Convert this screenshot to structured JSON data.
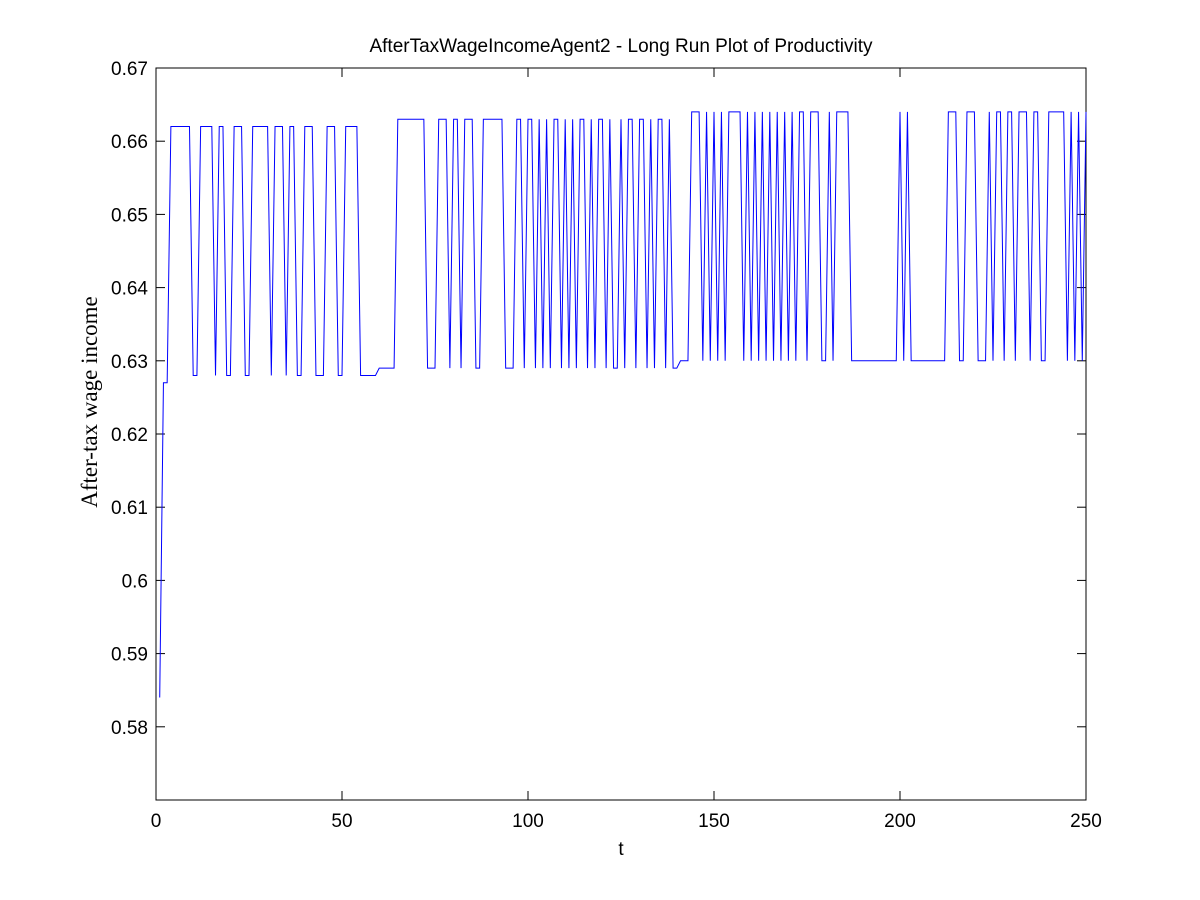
{
  "chart_data": {
    "type": "line",
    "title": "AfterTaxWageIncomeAgent2 - Long Run Plot of Productivity",
    "x_label": "t",
    "y_label": "After-tax wage income",
    "xlim": [
      0,
      250
    ],
    "xticks": [
      0,
      50,
      100,
      150,
      200,
      250
    ],
    "ylim": [
      0.57,
      0.67
    ],
    "yticks": [
      0.58,
      0.59,
      0.6,
      0.61,
      0.62,
      0.63,
      0.64,
      0.65,
      0.66,
      0.67
    ],
    "color": "#0000ff",
    "x": [
      1,
      2,
      3,
      4,
      5,
      6,
      7,
      8,
      9,
      10,
      11,
      12,
      13,
      14,
      15,
      16,
      17,
      18,
      19,
      20,
      21,
      22,
      23,
      24,
      25,
      26,
      27,
      28,
      29,
      30,
      31,
      32,
      33,
      34,
      35,
      36,
      37,
      38,
      39,
      40,
      41,
      42,
      43,
      44,
      45,
      46,
      47,
      48,
      49,
      50,
      51,
      52,
      53,
      54,
      55,
      56,
      57,
      58,
      59,
      60,
      61,
      62,
      63,
      64,
      65,
      66,
      67,
      68,
      69,
      70,
      71,
      72,
      73,
      74,
      75,
      76,
      77,
      78,
      79,
      80,
      81,
      82,
      83,
      84,
      85,
      86,
      87,
      88,
      89,
      90,
      91,
      92,
      93,
      94,
      95,
      96,
      97,
      98,
      99,
      100,
      101,
      102,
      103,
      104,
      105,
      106,
      107,
      108,
      109,
      110,
      111,
      112,
      113,
      114,
      115,
      116,
      117,
      118,
      119,
      120,
      121,
      122,
      123,
      124,
      125,
      126,
      127,
      128,
      129,
      130,
      131,
      132,
      133,
      134,
      135,
      136,
      137,
      138,
      139,
      140,
      141,
      142,
      143,
      144,
      145,
      146,
      147,
      148,
      149,
      150,
      151,
      152,
      153,
      154,
      155,
      156,
      157,
      158,
      159,
      160,
      161,
      162,
      163,
      164,
      165,
      166,
      167,
      168,
      169,
      170,
      171,
      172,
      173,
      174,
      175,
      176,
      177,
      178,
      179,
      180,
      181,
      182,
      183,
      184,
      185,
      186,
      187,
      188,
      189,
      190,
      191,
      192,
      193,
      194,
      195,
      196,
      197,
      198,
      199,
      200,
      201,
      202,
      203,
      204,
      205,
      206,
      207,
      208,
      209,
      210,
      211,
      212,
      213,
      214,
      215,
      216,
      217,
      218,
      219,
      220,
      221,
      222,
      223,
      224,
      225,
      226,
      227,
      228,
      229,
      230,
      231,
      232,
      233,
      234,
      235,
      236,
      237,
      238,
      239,
      240,
      241,
      242,
      243,
      244,
      245,
      246,
      247,
      248,
      249,
      250
    ],
    "values": [
      0.584,
      0.627,
      0.627,
      0.662,
      0.662,
      0.662,
      0.662,
      0.662,
      0.662,
      0.628,
      0.628,
      0.662,
      0.662,
      0.662,
      0.662,
      0.628,
      0.662,
      0.662,
      0.628,
      0.628,
      0.662,
      0.662,
      0.662,
      0.628,
      0.628,
      0.662,
      0.662,
      0.662,
      0.662,
      0.662,
      0.628,
      0.662,
      0.662,
      0.662,
      0.628,
      0.662,
      0.662,
      0.628,
      0.628,
      0.662,
      0.662,
      0.662,
      0.628,
      0.628,
      0.628,
      0.662,
      0.662,
      0.662,
      0.628,
      0.628,
      0.662,
      0.662,
      0.662,
      0.662,
      0.628,
      0.628,
      0.628,
      0.628,
      0.628,
      0.629,
      0.629,
      0.629,
      0.629,
      0.629,
      0.663,
      0.663,
      0.663,
      0.663,
      0.663,
      0.663,
      0.663,
      0.663,
      0.629,
      0.629,
      0.629,
      0.663,
      0.663,
      0.663,
      0.629,
      0.663,
      0.663,
      0.629,
      0.663,
      0.663,
      0.663,
      0.629,
      0.629,
      0.663,
      0.663,
      0.663,
      0.663,
      0.663,
      0.663,
      0.629,
      0.629,
      0.629,
      0.663,
      0.663,
      0.629,
      0.663,
      0.663,
      0.629,
      0.663,
      0.629,
      0.663,
      0.629,
      0.663,
      0.663,
      0.629,
      0.663,
      0.629,
      0.663,
      0.629,
      0.663,
      0.663,
      0.629,
      0.663,
      0.629,
      0.663,
      0.663,
      0.629,
      0.663,
      0.629,
      0.629,
      0.663,
      0.629,
      0.663,
      0.663,
      0.629,
      0.663,
      0.663,
      0.629,
      0.663,
      0.629,
      0.663,
      0.663,
      0.629,
      0.663,
      0.629,
      0.629,
      0.63,
      0.63,
      0.63,
      0.664,
      0.664,
      0.664,
      0.63,
      0.664,
      0.63,
      0.664,
      0.63,
      0.664,
      0.63,
      0.664,
      0.664,
      0.664,
      0.664,
      0.63,
      0.664,
      0.63,
      0.664,
      0.63,
      0.664,
      0.63,
      0.664,
      0.63,
      0.664,
      0.63,
      0.664,
      0.63,
      0.664,
      0.63,
      0.664,
      0.664,
      0.63,
      0.664,
      0.664,
      0.664,
      0.63,
      0.63,
      0.664,
      0.63,
      0.664,
      0.664,
      0.664,
      0.664,
      0.63,
      0.63,
      0.63,
      0.63,
      0.63,
      0.63,
      0.63,
      0.63,
      0.63,
      0.63,
      0.63,
      0.63,
      0.63,
      0.664,
      0.63,
      0.664,
      0.63,
      0.63,
      0.63,
      0.63,
      0.63,
      0.63,
      0.63,
      0.63,
      0.63,
      0.63,
      0.664,
      0.664,
      0.664,
      0.63,
      0.63,
      0.664,
      0.664,
      0.664,
      0.63,
      0.63,
      0.63,
      0.664,
      0.63,
      0.664,
      0.664,
      0.63,
      0.664,
      0.664,
      0.63,
      0.664,
      0.664,
      0.664,
      0.63,
      0.664,
      0.664,
      0.63,
      0.63,
      0.664,
      0.664,
      0.664,
      0.664,
      0.664,
      0.63,
      0.664,
      0.63,
      0.664,
      0.63,
      0.664
    ]
  }
}
